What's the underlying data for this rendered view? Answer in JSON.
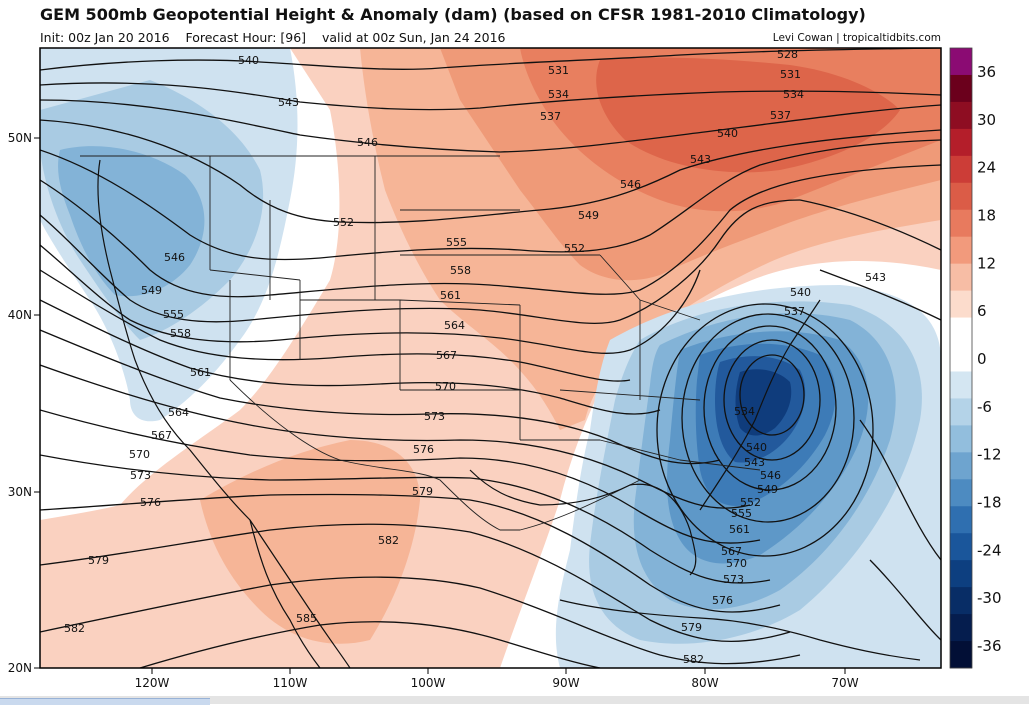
{
  "header": {
    "title": "GEM 500mb Geopotential Height & Anomaly (dam) (based on CFSR 1981-2010 Climatology)",
    "init": "Init: 00z Jan 20 2016",
    "forecast_hour": "Forecast Hour: [96]",
    "valid": "valid at 00z Sun, Jan 24 2016",
    "credit": "Levi Cowan | tropicaltidbits.com"
  },
  "axes": {
    "x_ticks": [
      "120W",
      "110W",
      "100W",
      "90W",
      "80W",
      "70W"
    ],
    "y_ticks": [
      "50N",
      "40N",
      "30N",
      "20N"
    ]
  },
  "colorbar": {
    "labels": [
      "36",
      "30",
      "24",
      "18",
      "12",
      "6",
      "0",
      "-6",
      "-12",
      "-18",
      "-24",
      "-30",
      "-36"
    ],
    "colors": [
      "#8b0b73",
      "#6b001c",
      "#8e0d22",
      "#b41e2a",
      "#cc3d37",
      "#db5c47",
      "#e87a5e",
      "#f29a7c",
      "#f7bda5",
      "#fcdccc",
      "#ffffff",
      "#ffffff",
      "#d4e6f2",
      "#b4d3e8",
      "#92bedd",
      "#6ea4cf",
      "#4d8bc1",
      "#2f6fb0",
      "#1a569b",
      "#0d3f80",
      "#082d66",
      "#051d4e",
      "#020f36"
    ],
    "colors_note": ""
  },
  "contours": {
    "labels": [
      "528",
      "531",
      "534",
      "537",
      "540",
      "543",
      "546",
      "549",
      "552",
      "555",
      "558",
      "561",
      "564",
      "567",
      "570",
      "573",
      "576",
      "579",
      "582",
      "585"
    ]
  },
  "chart_data": {
    "type": "heatmap",
    "title": "GEM 500mb Geopotential Height & Anomaly (dam) (based on CFSR 1981-2010 Climatology)",
    "x_ticks": [
      "120W",
      "110W",
      "100W",
      "90W",
      "80W",
      "70W"
    ],
    "y_ticks": [
      "50N",
      "40N",
      "30N",
      "20N"
    ],
    "anomaly_scale": [
      36,
      30,
      24,
      18,
      12,
      6,
      0,
      -6,
      -12,
      -18,
      -24,
      -30,
      -36
    ],
    "height_contour_labels": [
      528,
      531,
      534,
      537,
      540,
      543,
      546,
      549,
      552,
      555,
      558,
      561,
      564,
      567,
      570,
      573,
      576,
      579,
      582,
      585
    ]
  }
}
